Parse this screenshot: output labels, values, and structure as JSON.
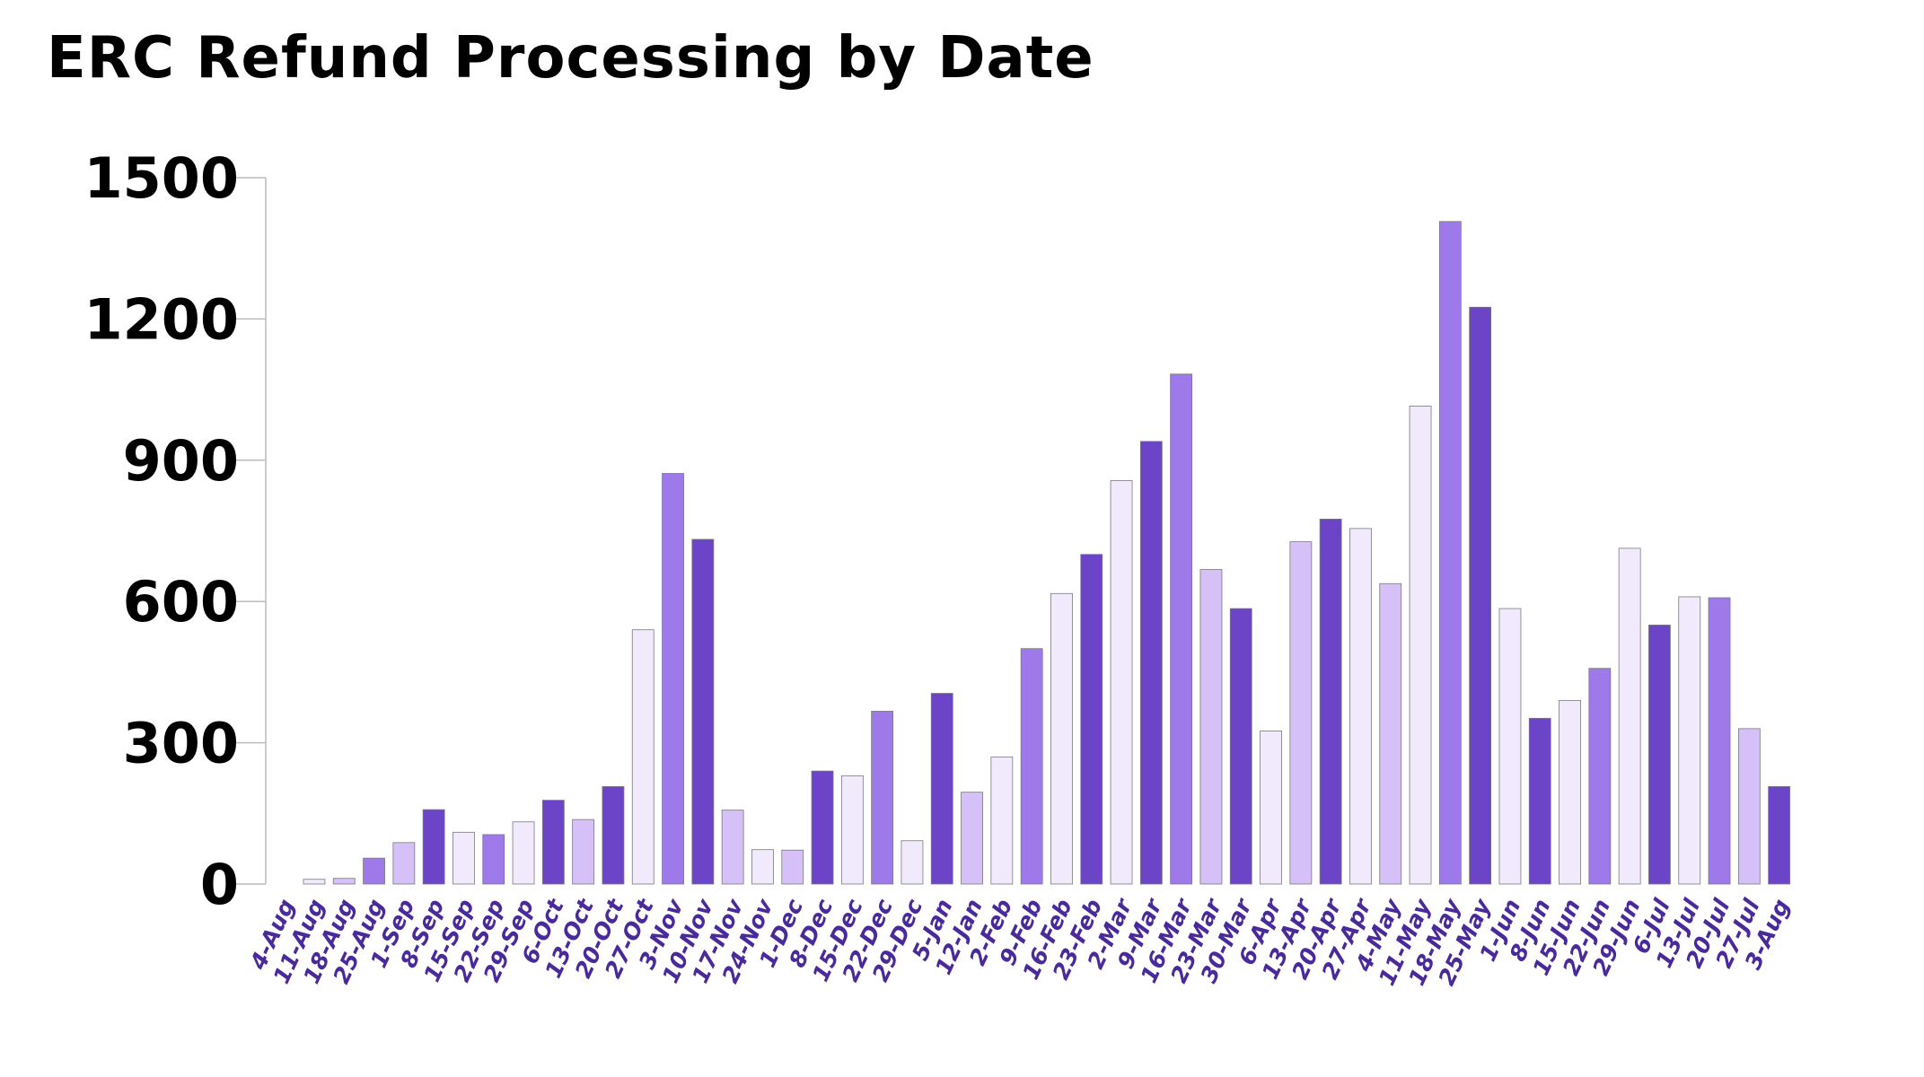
{
  "chart_data": {
    "type": "bar",
    "title": "ERC Refund Processing by Date",
    "xlabel": "",
    "ylabel": "",
    "ylim": [
      0,
      1500
    ],
    "yticks": [
      0,
      300,
      600,
      900,
      1200,
      1500
    ],
    "grid": false,
    "legend": "none",
    "categories": [
      "4-Aug",
      "11-Aug",
      "18-Aug",
      "25-Aug",
      "1-Sep",
      "8-Sep",
      "15-Sep",
      "22-Sep",
      "29-Sep",
      "6-Oct",
      "13-Oct",
      "20-Oct",
      "27-Oct",
      "3-Nov",
      "10-Nov",
      "17-Nov",
      "24-Nov",
      "1-Dec",
      "8-Dec",
      "15-Dec",
      "22-Dec",
      "29-Dec",
      "5-Jan",
      "12-Jan",
      "2-Feb",
      "9-Feb",
      "16-Feb",
      "23-Feb",
      "2-Mar",
      "9-Mar",
      "16-Mar",
      "23-Mar",
      "30-Mar",
      "6-Apr",
      "13-Apr",
      "20-Apr",
      "27-Apr",
      "4-May",
      "11-May",
      "18-May",
      "25-May",
      "1-Jun",
      "8-Jun",
      "15-Jun",
      "22-Jun",
      "29-Jun",
      "6-Jul",
      "13-Jul",
      "20-Jul",
      "27-Jul",
      "3-Aug"
    ],
    "values": [
      0,
      10,
      12,
      55,
      88,
      158,
      110,
      105,
      132,
      178,
      137,
      207,
      540,
      872,
      732,
      157,
      73,
      72,
      240,
      230,
      367,
      92,
      405,
      195,
      270,
      500,
      617,
      700,
      857,
      940,
      1083,
      668,
      585,
      325,
      727,
      775,
      755,
      638,
      1015,
      1407,
      1225,
      585,
      352,
      390,
      458,
      713,
      550,
      610,
      608,
      330,
      207
    ],
    "colors": [
      "#f1eafc",
      "#d5c0f7",
      "#9d79ea",
      "#6b44c8"
    ],
    "bar_color_index": [
      0,
      0,
      1,
      2,
      1,
      3,
      0,
      2,
      0,
      3,
      1,
      3,
      0,
      2,
      3,
      1,
      0,
      1,
      3,
      0,
      2,
      0,
      3,
      1,
      0,
      2,
      0,
      3,
      0,
      3,
      2,
      1,
      3,
      0,
      1,
      3,
      0,
      1,
      0,
      2,
      3,
      0,
      3,
      0,
      2,
      0,
      3,
      0,
      2,
      1,
      3
    ],
    "axis_color": "#bbbbbb",
    "label_color": "#4a2a9a"
  }
}
